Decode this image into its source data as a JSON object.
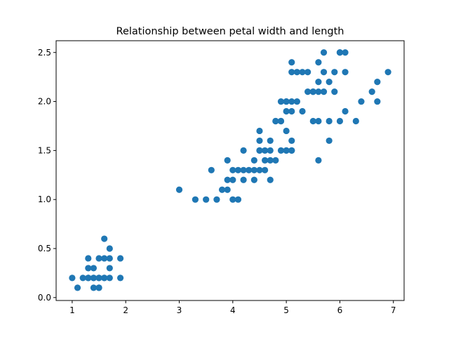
{
  "chart_data": {
    "type": "scatter",
    "title": "Relationship between petal width and length",
    "xlabel": "",
    "ylabel": "",
    "xlim": [
      0.7,
      7.2
    ],
    "ylim": [
      -0.03,
      2.62
    ],
    "xticks": [
      1,
      2,
      3,
      4,
      5,
      6,
      7
    ],
    "xtick_labels": [
      "1",
      "2",
      "3",
      "4",
      "5",
      "6",
      "7"
    ],
    "yticks": [
      0.0,
      0.5,
      1.0,
      1.5,
      2.0,
      2.5
    ],
    "ytick_labels": [
      "0.0",
      "0.5",
      "1.0",
      "1.5",
      "2.0",
      "2.5"
    ],
    "grid": false,
    "marker_color": "#1f77b4",
    "series": [
      {
        "x": [
          1.0,
          1.1,
          1.2,
          1.3,
          1.3,
          1.3,
          1.3,
          1.4,
          1.4,
          1.4,
          1.4,
          1.5,
          1.5,
          1.5,
          1.5,
          1.5,
          1.6,
          1.6,
          1.6,
          1.6,
          1.7,
          1.7,
          1.7,
          1.7,
          1.9,
          1.9,
          3.0,
          3.3,
          3.5,
          3.6,
          3.7,
          3.8,
          3.9,
          3.9,
          3.9,
          4.0,
          4.0,
          4.0,
          4.1,
          4.1,
          4.2,
          4.2,
          4.2,
          4.3,
          4.4,
          4.4,
          4.4,
          4.5,
          4.5,
          4.5,
          4.5,
          4.6,
          4.6,
          4.6,
          4.7,
          4.7,
          4.7,
          4.7,
          4.8,
          4.8,
          4.9,
          4.9,
          5.0,
          5.0,
          5.1,
          5.1,
          4.5,
          4.8,
          4.9,
          4.9,
          5.0,
          5.0,
          5.0,
          5.0,
          5.1,
          5.1,
          5.1,
          5.1,
          5.1,
          5.2,
          5.2,
          5.3,
          5.3,
          5.4,
          5.4,
          5.5,
          5.5,
          5.5,
          5.6,
          5.6,
          5.6,
          5.6,
          5.6,
          5.7,
          5.7,
          5.7,
          5.8,
          5.8,
          5.8,
          5.9,
          5.9,
          6.0,
          6.0,
          6.0,
          6.1,
          6.1,
          6.1,
          6.3,
          6.4,
          6.6,
          6.7,
          6.7,
          6.9
        ],
        "y": [
          0.2,
          0.1,
          0.2,
          0.2,
          0.3,
          0.4,
          0.2,
          0.1,
          0.2,
          0.3,
          0.2,
          0.1,
          0.2,
          0.4,
          0.2,
          0.1,
          0.2,
          0.4,
          0.6,
          0.2,
          0.2,
          0.3,
          0.5,
          0.4,
          0.2,
          0.4,
          1.1,
          1.0,
          1.0,
          1.3,
          1.0,
          1.1,
          1.1,
          1.2,
          1.4,
          1.0,
          1.2,
          1.3,
          1.0,
          1.3,
          1.2,
          1.3,
          1.5,
          1.3,
          1.2,
          1.3,
          1.4,
          1.3,
          1.5,
          1.6,
          1.7,
          1.3,
          1.4,
          1.5,
          1.2,
          1.4,
          1.5,
          1.6,
          1.4,
          1.8,
          1.5,
          1.8,
          1.5,
          1.7,
          1.5,
          1.6,
          1.5,
          1.8,
          1.8,
          2.0,
          1.9,
          2.0,
          1.5,
          2.0,
          1.9,
          2.0,
          2.3,
          2.4,
          1.5,
          2.0,
          2.3,
          2.3,
          1.9,
          2.1,
          2.3,
          1.8,
          2.1,
          2.1,
          1.4,
          1.8,
          2.1,
          2.2,
          2.4,
          2.1,
          2.3,
          2.5,
          1.6,
          1.8,
          2.2,
          2.1,
          2.3,
          1.8,
          2.5,
          2.5,
          1.9,
          2.3,
          2.5,
          1.8,
          2.0,
          2.1,
          2.0,
          2.2,
          2.3
        ]
      }
    ]
  }
}
